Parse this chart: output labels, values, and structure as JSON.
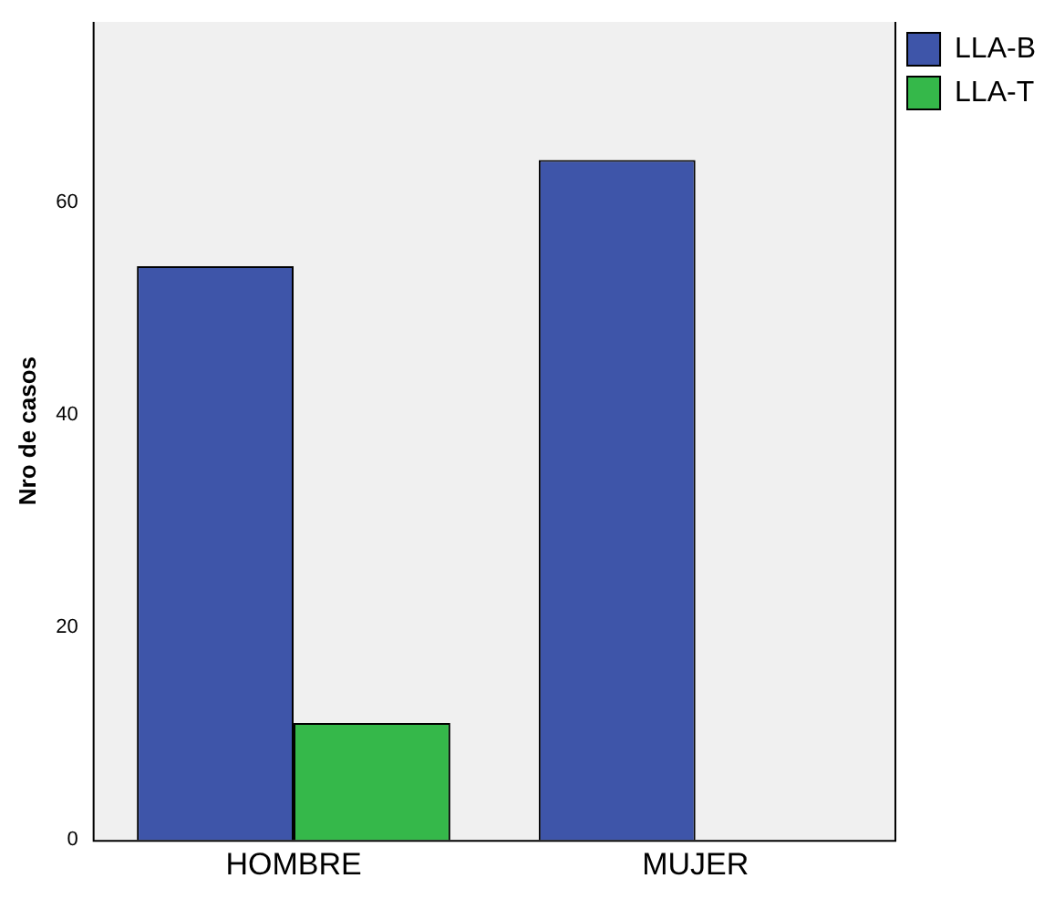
{
  "chart_data": {
    "type": "bar",
    "ylabel": "Nro de casos",
    "categories": [
      "HOMBRE",
      "MUJER"
    ],
    "series": [
      {
        "name": "LLA-B",
        "color": "#3e55a9",
        "values": [
          54,
          64
        ]
      },
      {
        "name": "LLA-T",
        "color": "#35b84a",
        "values": [
          11,
          0
        ]
      }
    ],
    "ylim": [
      0,
      77
    ],
    "yticks": [
      0,
      20,
      40,
      60
    ],
    "grid": false,
    "legend": "top right"
  }
}
